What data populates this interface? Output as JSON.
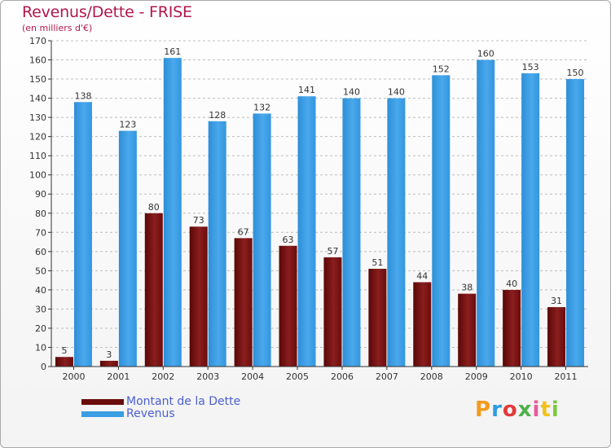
{
  "title": "Revenus/Dette - FRISE",
  "subtitle": "(en milliers d'€)",
  "logo": {
    "text": "Proxiti",
    "colors": [
      "#f39a1e",
      "#2e9be0",
      "#e23a3a",
      "#4fb04a",
      "#e85a9a",
      "#f2c21a",
      "#7ac943"
    ]
  },
  "colors": {
    "debt": "#7a1010",
    "revenue": "#3a9ee2",
    "title": "#b2174a",
    "legend_text": "#4a5fd1"
  },
  "chart_data": {
    "type": "bar",
    "title": "Revenus/Dette - FRISE",
    "ylabel": "(en milliers d'€)",
    "ylim": [
      0,
      170
    ],
    "yticks": [
      0,
      10,
      20,
      30,
      40,
      50,
      60,
      70,
      80,
      90,
      100,
      110,
      120,
      130,
      140,
      150,
      160,
      170
    ],
    "grid": true,
    "legend": "bottom-left",
    "categories": [
      "2000",
      "2001",
      "2002",
      "2003",
      "2004",
      "2005",
      "2006",
      "2007",
      "2008",
      "2009",
      "2010",
      "2011"
    ],
    "series": [
      {
        "name": "Montant de la Dette",
        "values": [
          5,
          3,
          80,
          73,
          67,
          63,
          57,
          51,
          44,
          38,
          40,
          31
        ]
      },
      {
        "name": "Revenus",
        "values": [
          138,
          123,
          161,
          128,
          132,
          141,
          140,
          140,
          152,
          160,
          153,
          150
        ]
      }
    ]
  }
}
